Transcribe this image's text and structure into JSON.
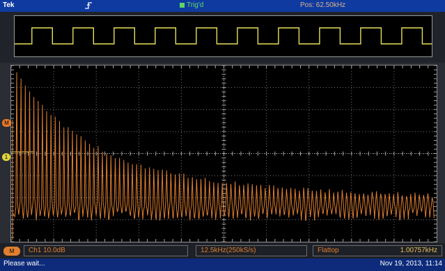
{
  "topbar": {
    "brand": "Tek",
    "trigger_edge_icon": "rising-edge-icon",
    "trigger_status": "Trig'd",
    "position": "Pos: 62.50kHz"
  },
  "colors": {
    "channel1": "#e8e05a",
    "math_fft": "#e07f2f",
    "graticule": "#7a7a7a"
  },
  "overview": {
    "waveform": "square",
    "periods_visible": 10
  },
  "markers": {
    "ref_label": "M",
    "ch1_label": "1"
  },
  "readout": {
    "math_badge": "M",
    "channel_scale": "Ch1  10.0dB",
    "span": "12.5kHz(250kS/s)",
    "window_label": "Flattop",
    "frequency": "1.00757kHz"
  },
  "status": {
    "message": "Please wait...",
    "datetime": "Nov 19, 2013, 11:14"
  }
}
